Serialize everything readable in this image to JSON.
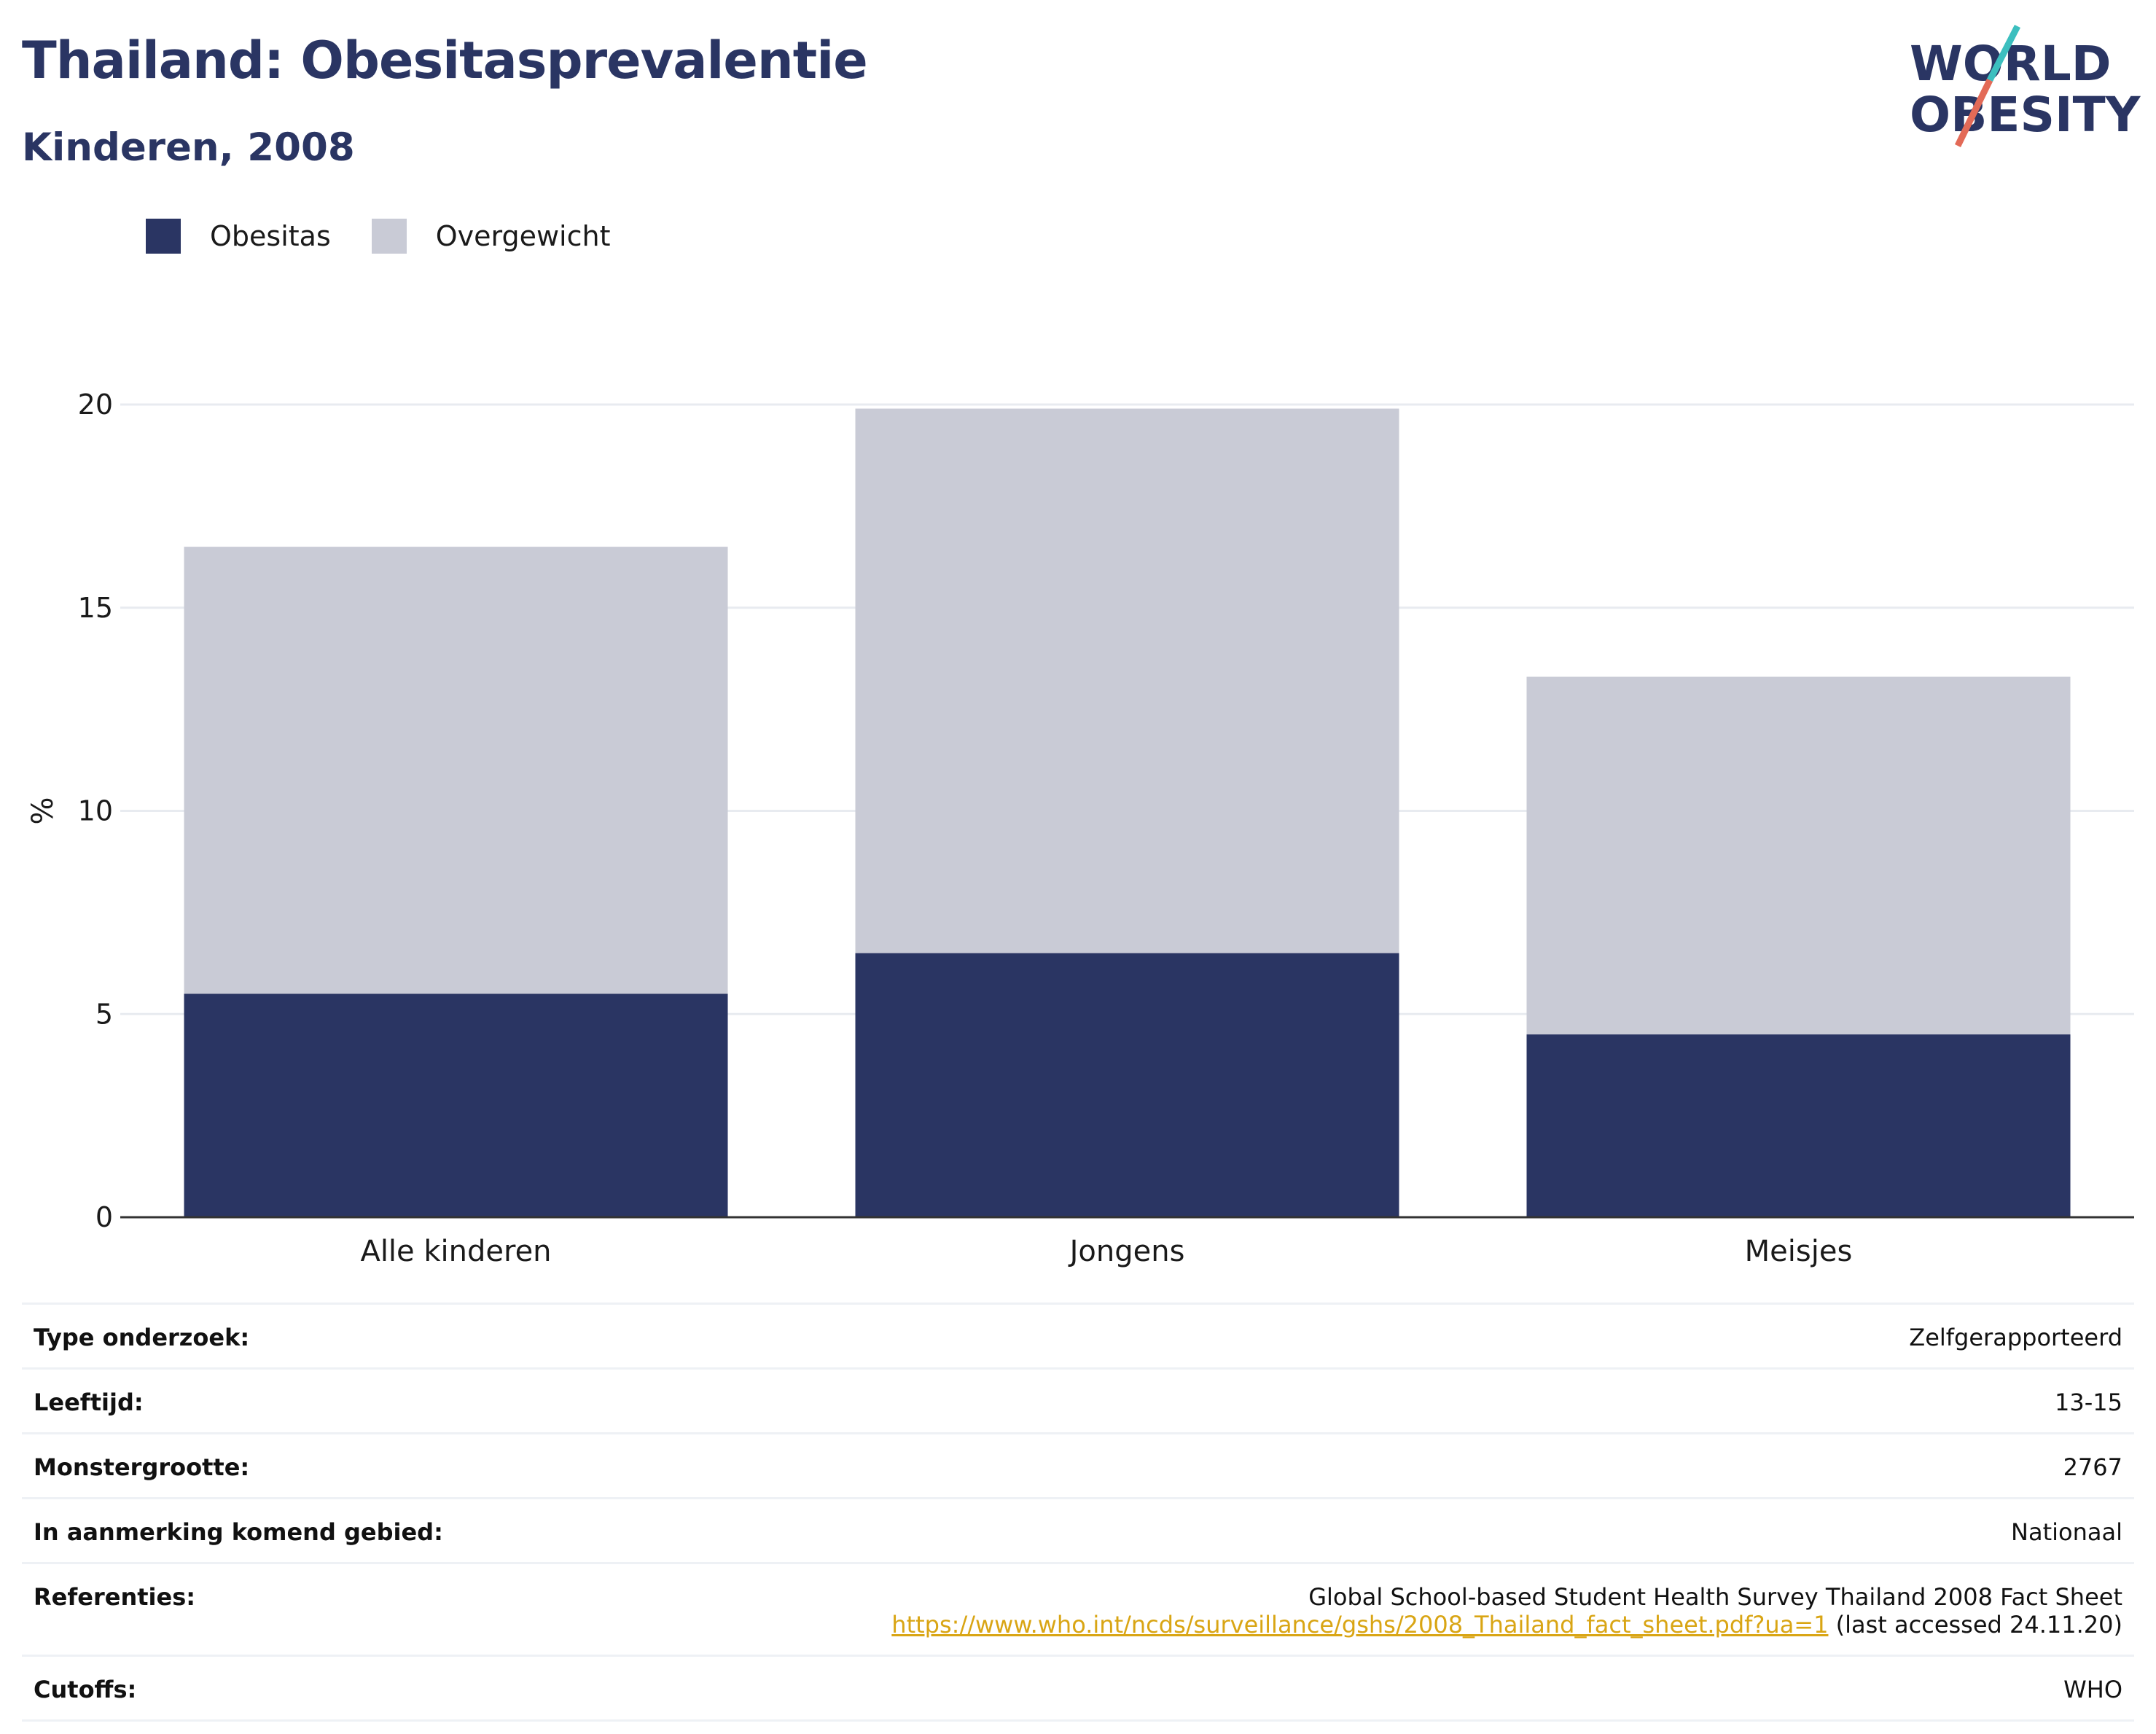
{
  "header": {
    "title": "Thailand: Obesitasprevalentie",
    "subtitle": "Kinderen, 2008"
  },
  "logo": {
    "line1": "WORLD",
    "line2": "OBESITY",
    "colors": {
      "text": "#2a3563",
      "slash_top": "#3cbfbf",
      "slash_bottom": "#e36a57"
    }
  },
  "legend": [
    {
      "label": "Obesitas",
      "color": "#2a3563"
    },
    {
      "label": "Overgewicht",
      "color": "#c9cbd6"
    }
  ],
  "chart_data": {
    "type": "bar",
    "stacked": true,
    "categories": [
      "Alle kinderen",
      "Jongens",
      "Meisjes"
    ],
    "series": [
      {
        "name": "Obesitas",
        "values": [
          5.5,
          6.5,
          4.5
        ],
        "color": "#2a3563"
      },
      {
        "name": "Overgewicht",
        "values": [
          11.0,
          13.4,
          8.8
        ],
        "color": "#c9cbd6"
      }
    ],
    "totals": [
      16.5,
      19.9,
      13.3
    ],
    "ylabel": "%",
    "xlabel": "",
    "ylim": [
      0,
      20
    ],
    "yticks": [
      0,
      5,
      10,
      15,
      20
    ],
    "grid": true,
    "legend_position": "top-left"
  },
  "meta": [
    {
      "key": "Type onderzoek:",
      "value": "Zelfgerapporteerd"
    },
    {
      "key": "Leeftijd:",
      "value": "13-15"
    },
    {
      "key": "Monstergrootte:",
      "value": "2767"
    },
    {
      "key": "In aanmerking komend gebied:",
      "value": "Nationaal"
    },
    {
      "key": "Referenties:",
      "value": "Global School-based Student Health Survey Thailand 2008 Fact Sheet",
      "link": "https://www.who.int/ncds/surveillance/gshs/2008_Thailand_fact_sheet.pdf?ua=1",
      "note": "(last accessed 24.11.20)"
    },
    {
      "key": "Cutoffs:",
      "value": "WHO"
    }
  ]
}
